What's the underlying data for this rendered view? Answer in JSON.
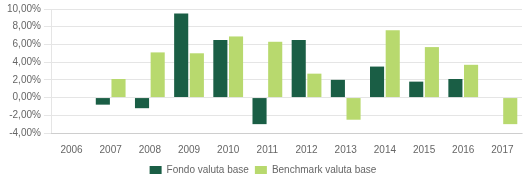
{
  "chart_data": {
    "type": "bar",
    "categories": [
      "2006",
      "2007",
      "2008",
      "2009",
      "2010",
      "2011",
      "2012",
      "2013",
      "2014",
      "2015",
      "2016",
      "2017"
    ],
    "series": [
      {
        "name": "Fondo valuta base",
        "color": "#1a5e45",
        "values": [
          0.0,
          -0.8,
          -1.2,
          9.5,
          6.5,
          -3.0,
          6.5,
          2.0,
          3.5,
          1.8,
          2.1,
          0.0
        ]
      },
      {
        "name": "Benchmark valuta base",
        "color": "#b8d96e",
        "values": [
          0.0,
          2.1,
          5.1,
          5.0,
          6.9,
          6.3,
          2.7,
          -2.5,
          7.6,
          5.7,
          3.7,
          -3.0
        ]
      }
    ],
    "ylim": [
      -4.0,
      10.0
    ],
    "yticks": [
      {
        "value": -4.0,
        "label": "-4,00%"
      },
      {
        "value": -2.0,
        "label": "-2,00%"
      },
      {
        "value": 0.0,
        "label": "0,00%"
      },
      {
        "value": 2.0,
        "label": "2,00%"
      },
      {
        "value": 4.0,
        "label": "4,00%"
      },
      {
        "value": 6.0,
        "label": "6,00%"
      },
      {
        "value": 8.0,
        "label": "8,00%"
      },
      {
        "value": 10.0,
        "label": "10,00%"
      }
    ],
    "grid": true,
    "legend": "bottom"
  }
}
